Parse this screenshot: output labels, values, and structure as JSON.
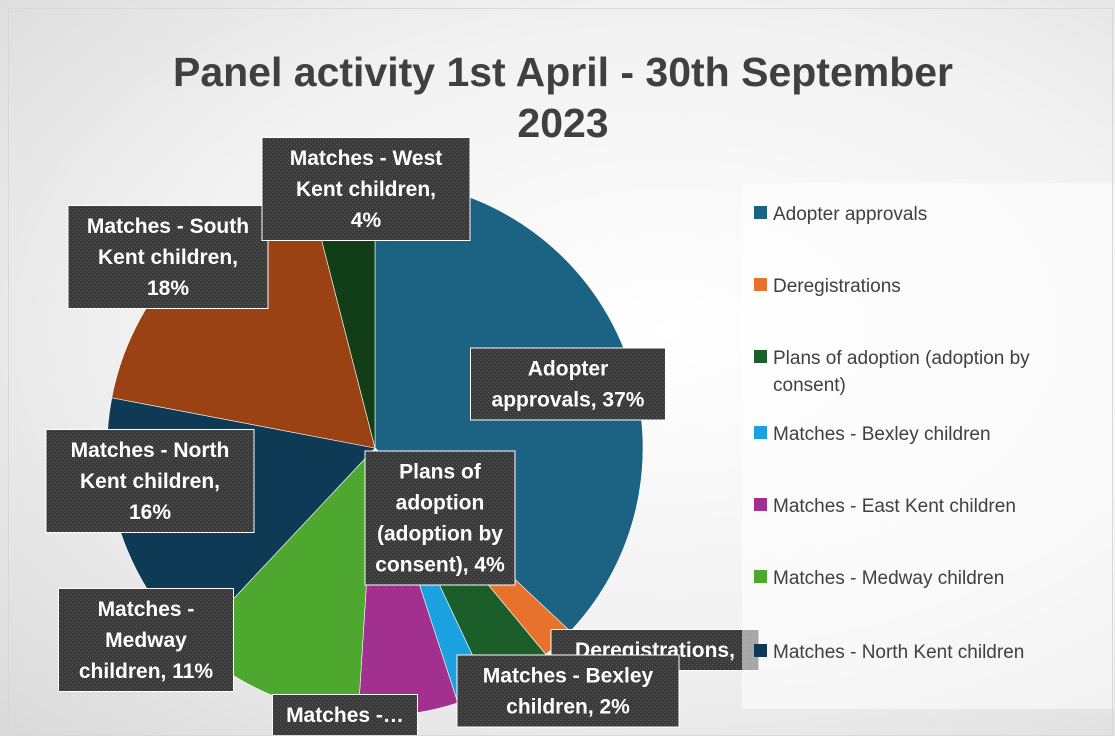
{
  "chart_data": {
    "type": "pie",
    "title": "Panel activity 1st April - 30th September 2023",
    "title_lines": [
      "Panel activity 1st April - 30th September",
      "2023"
    ],
    "categories": [
      "Adopter approvals",
      "Deregistrations",
      "Plans of adoption (adoption by consent)",
      "Matches - Bexley children",
      "Matches - East Kent children",
      "Matches - Medway children",
      "Matches - North Kent children",
      "Matches - South Kent children",
      "Matches - West Kent children"
    ],
    "values": [
      37,
      2,
      4,
      2,
      6,
      11,
      16,
      18,
      4
    ],
    "colors": [
      "#1b6283",
      "#e8722c",
      "#1c5e2a",
      "#1ba1df",
      "#a2308f",
      "#4ea72e",
      "#0e3a56",
      "#9a4213",
      "#123e17"
    ],
    "data_labels": [
      [
        "Adopter",
        "approvals, 37%"
      ],
      [
        "Deregistrations,"
      ],
      [
        "Plans of",
        "adoption",
        "(adoption by",
        "consent), 4%"
      ],
      [
        "Matches - Bexley",
        "children, 2%"
      ],
      [
        "Matches -…"
      ],
      [
        "Matches -",
        "Medway",
        "children, 11%"
      ],
      [
        "Matches - North",
        "Kent children,",
        "16%"
      ],
      [
        "Matches - South",
        "Kent children,",
        "18%"
      ],
      [
        "Matches - West",
        "Kent children,",
        "4%"
      ]
    ],
    "legend": {
      "placement": "right",
      "entries": [
        "Adopter approvals",
        "Deregistrations",
        "Plans of adoption (adoption by consent)",
        "Matches - Bexley children",
        "Matches - East Kent children",
        "Matches - Medway children",
        "Matches - North Kent children"
      ]
    }
  }
}
